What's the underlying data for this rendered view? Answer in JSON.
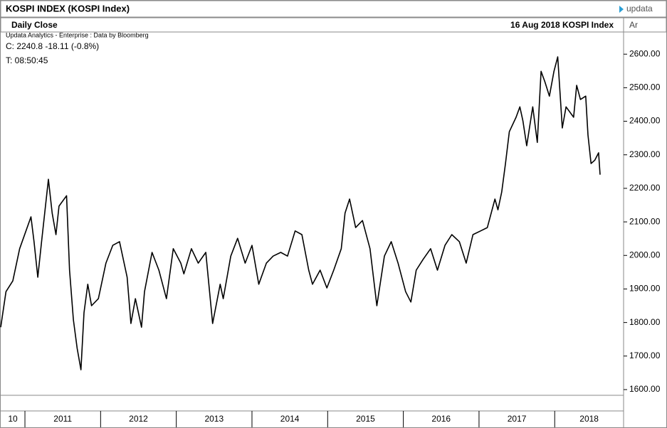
{
  "header": {
    "title": "KOSPI INDEX (KOSPI Index)",
    "logo": "updata"
  },
  "subheader": {
    "study": "Daily Close",
    "date_instrument": "16 Aug 2018  KOSPI Index",
    "axis_mode": "Ar"
  },
  "info": {
    "source": "Updata Analytics - Enterprise : Data by Bloomberg",
    "close": "C: 2240.8  -18.11 (-0.8%)",
    "time": "T: 08:50:45"
  },
  "chart_data": {
    "type": "line",
    "color": "#000000",
    "x": [
      2010.68,
      2010.75,
      2010.84,
      2010.93,
      2011.08,
      2011.12,
      2011.17,
      2011.22,
      2011.31,
      2011.36,
      2011.41,
      2011.45,
      2011.55,
      2011.59,
      2011.64,
      2011.69,
      2011.74,
      2011.78,
      2011.83,
      2011.88,
      2011.97,
      2012.07,
      2012.16,
      2012.25,
      2012.35,
      2012.4,
      2012.46,
      2012.54,
      2012.58,
      2012.68,
      2012.77,
      2012.87,
      2012.96,
      2013.06,
      2013.1,
      2013.2,
      2013.29,
      2013.39,
      2013.48,
      2013.58,
      2013.62,
      2013.72,
      2013.81,
      2013.91,
      2014.0,
      2014.09,
      2014.19,
      2014.28,
      2014.38,
      2014.47,
      2014.57,
      2014.66,
      2014.75,
      2014.8,
      2014.9,
      2014.99,
      2015.08,
      2015.18,
      2015.23,
      2015.29,
      2015.37,
      2015.46,
      2015.56,
      2015.65,
      2015.75,
      2015.84,
      2015.93,
      2016.03,
      2016.1,
      2016.17,
      2016.26,
      2016.36,
      2016.45,
      2016.55,
      2016.64,
      2016.74,
      2016.83,
      2016.92,
      2017.02,
      2017.11,
      2017.21,
      2017.25,
      2017.3,
      2017.35,
      2017.4,
      2017.49,
      2017.54,
      2017.58,
      2017.63,
      2017.71,
      2017.77,
      2017.82,
      2017.87,
      2017.93,
      2017.99,
      2018.04,
      2018.1,
      2018.15,
      2018.25,
      2018.29,
      2018.34,
      2018.41,
      2018.44,
      2018.48,
      2018.53,
      2018.58,
      2018.6
    ],
    "values": [
      1786,
      1892,
      1924,
      2020,
      2115,
      2041,
      1935,
      2041,
      2227,
      2126,
      2062,
      2147,
      2178,
      1956,
      1808,
      1723,
      1659,
      1829,
      1914,
      1850,
      1871,
      1977,
      2030,
      2041,
      1935,
      1797,
      1871,
      1786,
      1892,
      2009,
      1956,
      1871,
      2020,
      1977,
      1945,
      2020,
      1977,
      2009,
      1797,
      1914,
      1871,
      1998,
      2051,
      1977,
      2030,
      1914,
      1977,
      1998,
      2009,
      1998,
      2073,
      2062,
      1956,
      1914,
      1956,
      1903,
      1956,
      2020,
      2126,
      2168,
      2083,
      2104,
      2020,
      1850,
      1998,
      2041,
      1977,
      1892,
      1861,
      1956,
      1988,
      2020,
      1956,
      2030,
      2062,
      2041,
      1977,
      2062,
      2073,
      2083,
      2168,
      2136,
      2189,
      2274,
      2369,
      2412,
      2443,
      2401,
      2327,
      2443,
      2337,
      2549,
      2518,
      2475,
      2549,
      2592,
      2380,
      2443,
      2412,
      2507,
      2465,
      2475,
      2359,
      2274,
      2284,
      2306,
      2240.8
    ],
    "xlim": [
      2010.68,
      2018.91
    ],
    "xticks": [
      {
        "value": 2010,
        "label": "10"
      },
      2011,
      2012,
      2013,
      2014,
      2015,
      2016,
      2017,
      2018
    ],
    "ylim": [
      1583,
      2664
    ],
    "yticks": [
      {
        "value": 1600,
        "label": "1600.00"
      },
      {
        "value": 1700,
        "label": "1700.00"
      },
      {
        "value": 1800,
        "label": "1800.00"
      },
      {
        "value": 1900,
        "label": "1900.00"
      },
      {
        "value": 2000,
        "label": "2000.00"
      },
      {
        "value": 2100,
        "label": "2100.00"
      },
      {
        "value": 2200,
        "label": "2200.00"
      },
      {
        "value": 2300,
        "label": "2300.00"
      },
      {
        "value": 2400,
        "label": "2400.00"
      },
      {
        "value": 2500,
        "label": "2500.00"
      },
      {
        "value": 2600,
        "label": "2600.00"
      }
    ]
  }
}
